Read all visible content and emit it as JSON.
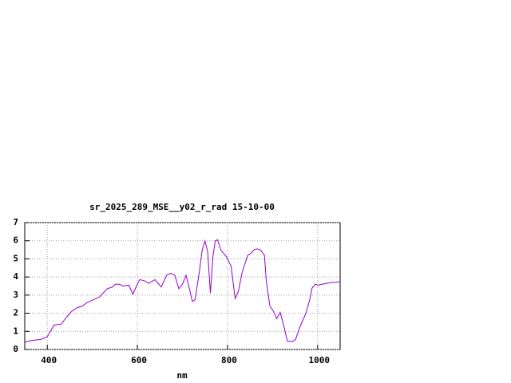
{
  "chart_data": {
    "type": "line",
    "title": "sr_2025_289_MSE__y02_r_rad 15-10-00",
    "x_label": "nm",
    "x": [
      350,
      366,
      385,
      400,
      415,
      431,
      445,
      454,
      466,
      478,
      489,
      503,
      516,
      533,
      545,
      551,
      560,
      568,
      581,
      590,
      598,
      605,
      615,
      625,
      639,
      653,
      665,
      674,
      683,
      692,
      700,
      708,
      715,
      722,
      728,
      737,
      744,
      750,
      756,
      762,
      768,
      773,
      778,
      785,
      798,
      808,
      817,
      824,
      833,
      845,
      852,
      859,
      866,
      873,
      882,
      886,
      894,
      902,
      909,
      917,
      925,
      933,
      945,
      951,
      960,
      974,
      982,
      988,
      995,
      1000,
      1010,
      1020,
      1030,
      1040,
      1050
    ],
    "series": [
      {
        "name": "sr_2025_289_MSE__y02_r_rad",
        "color": "#9400d3",
        "values": [
          0.4,
          0.5,
          0.55,
          0.7,
          1.35,
          1.4,
          1.85,
          2.1,
          2.3,
          2.4,
          2.6,
          2.75,
          2.9,
          3.35,
          3.45,
          3.6,
          3.6,
          3.5,
          3.55,
          3.05,
          3.5,
          3.85,
          3.8,
          3.65,
          3.85,
          3.45,
          4.1,
          4.2,
          4.1,
          3.35,
          3.6,
          4.1,
          3.4,
          2.65,
          2.75,
          4.2,
          5.5,
          6.0,
          5.4,
          3.1,
          5.2,
          6.0,
          6.05,
          5.5,
          5.1,
          4.6,
          2.8,
          3.2,
          4.3,
          5.2,
          5.3,
          5.5,
          5.55,
          5.5,
          5.2,
          3.8,
          2.4,
          2.1,
          1.7,
          2.05,
          1.3,
          0.45,
          0.45,
          0.55,
          1.2,
          2.0,
          2.7,
          3.4,
          3.6,
          3.55,
          3.6,
          3.65,
          3.7,
          3.7,
          3.75
        ]
      }
    ],
    "xlim": [
      350,
      1050
    ],
    "xticks": [
      400,
      600,
      800,
      1000
    ],
    "ylim": [
      0,
      7
    ],
    "yticks": [
      0,
      1,
      2,
      3,
      4,
      5,
      6,
      7
    ],
    "grid": true
  }
}
